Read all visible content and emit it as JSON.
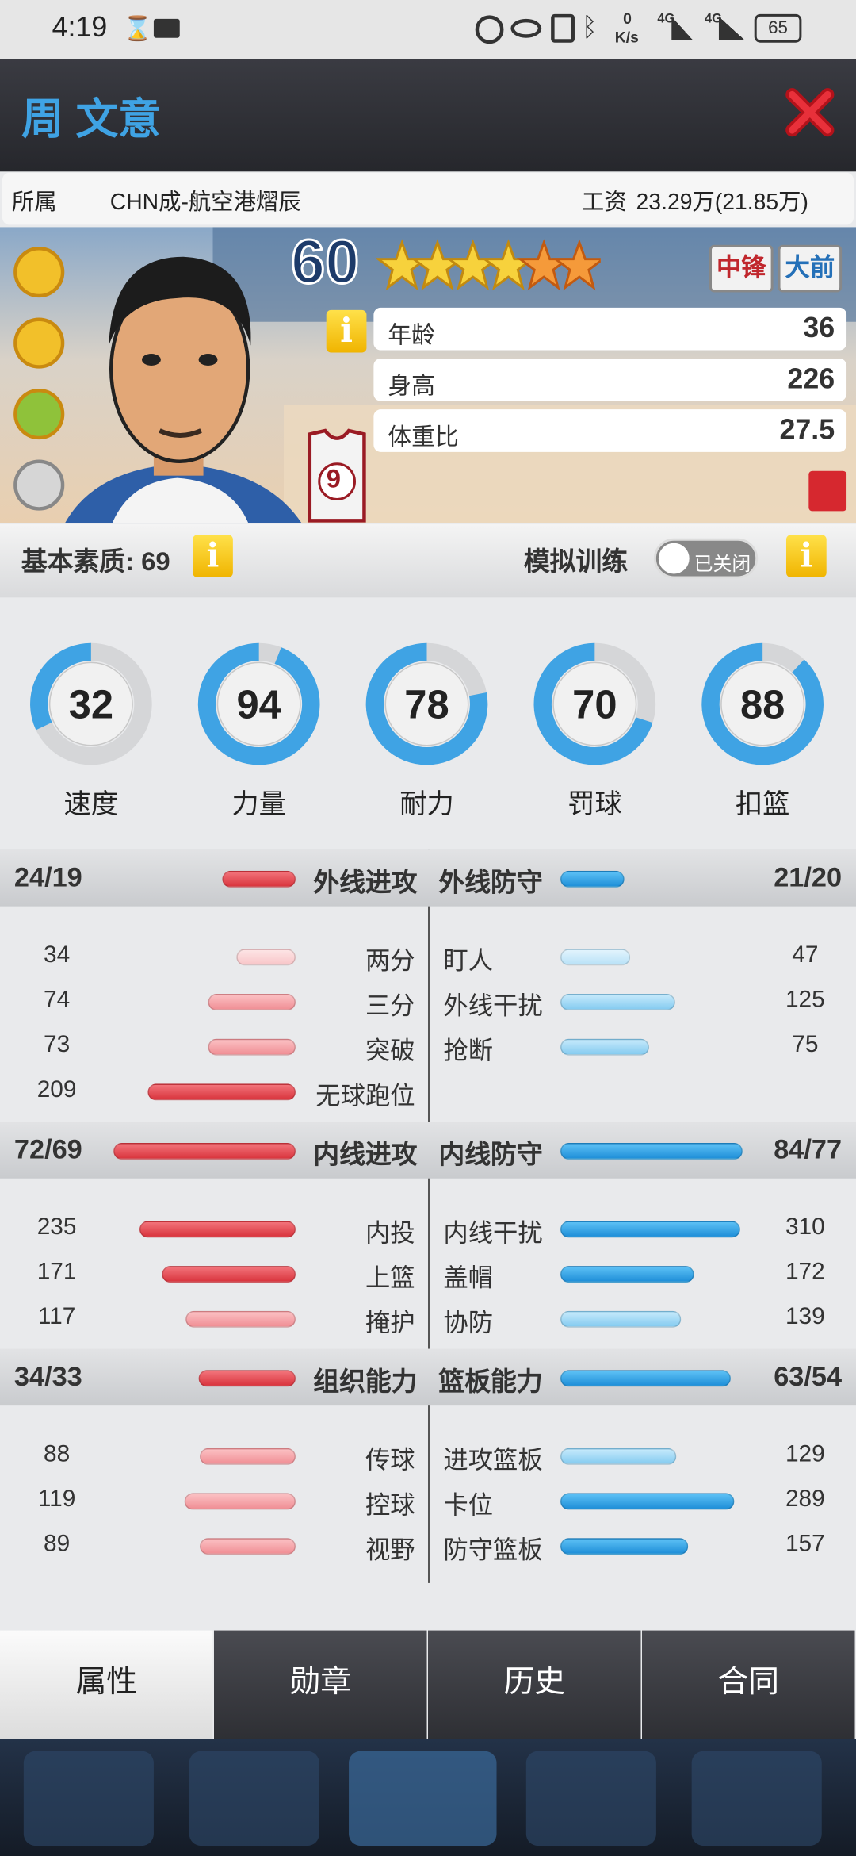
{
  "status_bar": {
    "time": "4:19",
    "speed": "0",
    "speed_unit": "K/s",
    "network_1": "4G",
    "network_2": "4G",
    "battery": "65"
  },
  "header": {
    "name": "周 文意"
  },
  "info": {
    "team_label": "所属",
    "team": "CHN成-航空港熠辰",
    "salary_label": "工资",
    "salary": "23.29万(21.85万)"
  },
  "player": {
    "rating": 60,
    "positions": [
      "中锋",
      "大前"
    ],
    "jersey": "9",
    "stats": [
      {
        "label": "年龄",
        "value": 36
      },
      {
        "label": "身高",
        "value": 226
      },
      {
        "label": "体重比",
        "value": 27.5
      }
    ]
  },
  "basics": {
    "label": "基本素质: 69",
    "training_label": "模拟训练",
    "training_state": "已关闭"
  },
  "abilities": [
    {
      "label": "速度",
      "value": 32
    },
    {
      "label": "力量",
      "value": 94
    },
    {
      "label": "耐力",
      "value": 78
    },
    {
      "label": "罚球",
      "value": 70
    },
    {
      "label": "扣篮",
      "value": 88
    }
  ],
  "sections": [
    {
      "left": {
        "total": "24/19",
        "title": "外线进攻",
        "items": [
          {
            "label": "两分",
            "value": 34
          },
          {
            "label": "三分",
            "value": 74
          },
          {
            "label": "突破",
            "value": 73
          },
          {
            "label": "无球跑位",
            "value": 209
          }
        ]
      },
      "right": {
        "total": "21/20",
        "title": "外线防守",
        "items": [
          {
            "label": "盯人",
            "value": 47
          },
          {
            "label": "外线干扰",
            "value": 125
          },
          {
            "label": "抢断",
            "value": 75
          }
        ]
      }
    },
    {
      "left": {
        "total": "72/69",
        "title": "内线进攻",
        "items": [
          {
            "label": "内投",
            "value": 235
          },
          {
            "label": "上篮",
            "value": 171
          },
          {
            "label": "掩护",
            "value": 117
          }
        ]
      },
      "right": {
        "total": "84/77",
        "title": "内线防守",
        "items": [
          {
            "label": "内线干扰",
            "value": 310
          },
          {
            "label": "盖帽",
            "value": 172
          },
          {
            "label": "协防",
            "value": 139
          }
        ]
      }
    },
    {
      "left": {
        "total": "34/33",
        "title": "组织能力",
        "items": [
          {
            "label": "传球",
            "value": 88
          },
          {
            "label": "控球",
            "value": 119
          },
          {
            "label": "视野",
            "value": 89
          }
        ]
      },
      "right": {
        "total": "63/54",
        "title": "篮板能力",
        "items": [
          {
            "label": "进攻篮板",
            "value": 129
          },
          {
            "label": "卡位",
            "value": 289
          },
          {
            "label": "防守篮板",
            "value": 157
          }
        ]
      }
    }
  ],
  "tabs": [
    "属性",
    "勋章",
    "历史",
    "合同"
  ]
}
